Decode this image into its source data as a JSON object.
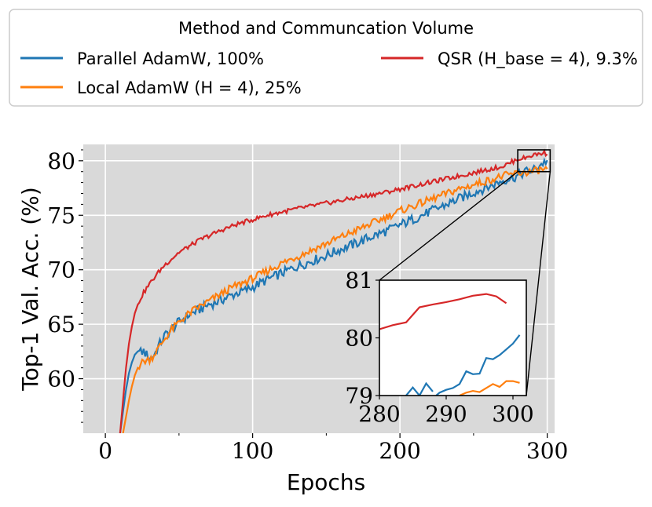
{
  "chart_data": {
    "type": "line",
    "title": "",
    "xlabel": "Epochs",
    "ylabel": "Top-1 Val. Acc. (%)",
    "xlim": [
      -15,
      305
    ],
    "ylim": [
      55,
      81.5
    ],
    "xticks": [
      "0",
      "100",
      "200",
      "300"
    ],
    "yticks": [
      "60",
      "65",
      "70",
      "75",
      "80"
    ],
    "grid": true,
    "legend": {
      "title": "Method and Communcation Volume",
      "placement": "top",
      "entries": [
        {
          "series": 0,
          "label": "Parallel AdamW, 100%"
        },
        {
          "series": 1,
          "label": "Local AdamW (H = 4), 25%"
        },
        {
          "series": 2,
          "label": "QSR (H_base = 4), 9.3%"
        }
      ]
    },
    "series": [
      {
        "name": "Parallel AdamW, 100%",
        "color": "#1f77b4",
        "points": [
          [
            10,
            55
          ],
          [
            12,
            57
          ],
          [
            14,
            59
          ],
          [
            16,
            60.5
          ],
          [
            18,
            61.5
          ],
          [
            20,
            62.2
          ],
          [
            22,
            62.5
          ],
          [
            24,
            62.4
          ],
          [
            26,
            62.5
          ],
          [
            28,
            62.2
          ],
          [
            30,
            61.9
          ],
          [
            32,
            62.0
          ],
          [
            34,
            62.4
          ],
          [
            36,
            63.0
          ],
          [
            38,
            63.4
          ],
          [
            40,
            63.9
          ],
          [
            45,
            64.6
          ],
          [
            50,
            65.2
          ],
          [
            55,
            65.7
          ],
          [
            60,
            66.1
          ],
          [
            65,
            66.4
          ],
          [
            70,
            66.8
          ],
          [
            75,
            67.0
          ],
          [
            80,
            67.3
          ],
          [
            85,
            67.6
          ],
          [
            90,
            67.9
          ],
          [
            95,
            68.1
          ],
          [
            100,
            68.4
          ],
          [
            110,
            69.1
          ],
          [
            120,
            69.7
          ],
          [
            130,
            70.3
          ],
          [
            140,
            70.8
          ],
          [
            150,
            71.3
          ],
          [
            160,
            71.9
          ],
          [
            170,
            72.4
          ],
          [
            180,
            73.0
          ],
          [
            190,
            73.5
          ],
          [
            200,
            74.1
          ],
          [
            210,
            74.7
          ],
          [
            220,
            75.3
          ],
          [
            230,
            75.9
          ],
          [
            240,
            76.5
          ],
          [
            250,
            77.1
          ],
          [
            260,
            77.6
          ],
          [
            270,
            78.2
          ],
          [
            280,
            78.6
          ],
          [
            285,
            79.0
          ],
          [
            290,
            79.1
          ],
          [
            295,
            79.6
          ],
          [
            300,
            80.05
          ]
        ]
      },
      {
        "name": "Local AdamW (H = 4), 25%",
        "color": "#ff7f0e",
        "points": [
          [
            12,
            55
          ],
          [
            14,
            56.5
          ],
          [
            16,
            58
          ],
          [
            18,
            59.3
          ],
          [
            20,
            60.3
          ],
          [
            22,
            61.0
          ],
          [
            24,
            61.4
          ],
          [
            26,
            61.6
          ],
          [
            28,
            61.7
          ],
          [
            30,
            61.8
          ],
          [
            32,
            62.0
          ],
          [
            35,
            62.6
          ],
          [
            40,
            63.6
          ],
          [
            45,
            64.5
          ],
          [
            50,
            65.2
          ],
          [
            55,
            65.8
          ],
          [
            60,
            66.3
          ],
          [
            65,
            66.7
          ],
          [
            70,
            67.1
          ],
          [
            75,
            67.5
          ],
          [
            80,
            67.9
          ],
          [
            85,
            68.3
          ],
          [
            90,
            68.6
          ],
          [
            95,
            68.9
          ],
          [
            100,
            69.2
          ],
          [
            110,
            69.9
          ],
          [
            120,
            70.6
          ],
          [
            130,
            71.2
          ],
          [
            140,
            71.8
          ],
          [
            150,
            72.4
          ],
          [
            160,
            73.0
          ],
          [
            170,
            73.6
          ],
          [
            180,
            74.2
          ],
          [
            190,
            74.8
          ],
          [
            200,
            75.4
          ],
          [
            210,
            75.9
          ],
          [
            220,
            76.4
          ],
          [
            230,
            76.9
          ],
          [
            240,
            77.4
          ],
          [
            250,
            77.8
          ],
          [
            260,
            78.2
          ],
          [
            270,
            78.6
          ],
          [
            280,
            78.85
          ],
          [
            290,
            79.0
          ],
          [
            295,
            79.15
          ],
          [
            300,
            79.25
          ]
        ]
      },
      {
        "name": "QSR (H_base = 4), 9.3%",
        "color": "#d62728",
        "points": [
          [
            10,
            55
          ],
          [
            12,
            58
          ],
          [
            14,
            61
          ],
          [
            16,
            63.2
          ],
          [
            18,
            64.8
          ],
          [
            20,
            66.0
          ],
          [
            22,
            66.8
          ],
          [
            24,
            67.4
          ],
          [
            26,
            67.9
          ],
          [
            28,
            68.3
          ],
          [
            30,
            68.7
          ],
          [
            35,
            69.6
          ],
          [
            40,
            70.4
          ],
          [
            45,
            71.0
          ],
          [
            50,
            71.6
          ],
          [
            55,
            72.0
          ],
          [
            60,
            72.4
          ],
          [
            65,
            72.8
          ],
          [
            70,
            73.1
          ],
          [
            75,
            73.4
          ],
          [
            80,
            73.7
          ],
          [
            85,
            73.95
          ],
          [
            90,
            74.2
          ],
          [
            95,
            74.4
          ],
          [
            100,
            74.6
          ],
          [
            110,
            75.0
          ],
          [
            120,
            75.3
          ],
          [
            130,
            75.6
          ],
          [
            140,
            75.85
          ],
          [
            150,
            76.1
          ],
          [
            160,
            76.35
          ],
          [
            170,
            76.6
          ],
          [
            180,
            76.85
          ],
          [
            190,
            77.1
          ],
          [
            200,
            77.4
          ],
          [
            210,
            77.7
          ],
          [
            220,
            78.0
          ],
          [
            230,
            78.3
          ],
          [
            240,
            78.6
          ],
          [
            250,
            78.9
          ],
          [
            260,
            79.2
          ],
          [
            270,
            79.5
          ],
          [
            280,
            80.15
          ],
          [
            285,
            80.27
          ],
          [
            290,
            80.52
          ],
          [
            298,
            80.73
          ],
          [
            300,
            80.6
          ]
        ]
      }
    ],
    "inset": {
      "xlim": [
        280,
        302
      ],
      "ylim": [
        79,
        81
      ],
      "xticks": [
        "280",
        "290",
        "300"
      ],
      "yticks": [
        "79",
        "80",
        "81"
      ],
      "series": [
        {
          "name": "Parallel AdamW, 100%",
          "points": [
            [
              288.5,
              79.0
            ],
            [
              289,
              79.05
            ],
            [
              290,
              79.1
            ],
            [
              291,
              79.13
            ],
            [
              292,
              79.2
            ],
            [
              293,
              79.42
            ],
            [
              294,
              79.37
            ],
            [
              295,
              79.38
            ],
            [
              296,
              79.65
            ],
            [
              297,
              79.63
            ],
            [
              298,
              79.7
            ],
            [
              299,
              79.8
            ],
            [
              300,
              79.9
            ],
            [
              301,
              80.05
            ]
          ]
        },
        {
          "name": "Local AdamW (H = 4), 25%",
          "points": [
            [
              292,
              79.0
            ],
            [
              293,
              79.05
            ],
            [
              294,
              79.08
            ],
            [
              295,
              79.06
            ],
            [
              296,
              79.13
            ],
            [
              297,
              79.2
            ],
            [
              298,
              79.15
            ],
            [
              299,
              79.25
            ],
            [
              300,
              79.25
            ],
            [
              301,
              79.22
            ]
          ]
        },
        {
          "name": "QSR (H_base = 4), 9.3%",
          "points": [
            [
              280,
              80.15
            ],
            [
              282,
              80.22
            ],
            [
              284,
              80.27
            ],
            [
              286,
              80.53
            ],
            [
              288,
              80.58
            ],
            [
              290,
              80.62
            ],
            [
              292,
              80.67
            ],
            [
              294,
              80.73
            ],
            [
              296,
              80.76
            ],
            [
              297.5,
              80.72
            ],
            [
              299,
              80.6
            ]
          ]
        },
        {
          "name": "Parallel AdamW spike",
          "points": [
            [
              284,
              79.0
            ],
            [
              285,
              79.14
            ],
            [
              286,
              79.0
            ],
            [
              287,
              79.21
            ],
            [
              288,
              79.07
            ]
          ]
        }
      ]
    }
  }
}
